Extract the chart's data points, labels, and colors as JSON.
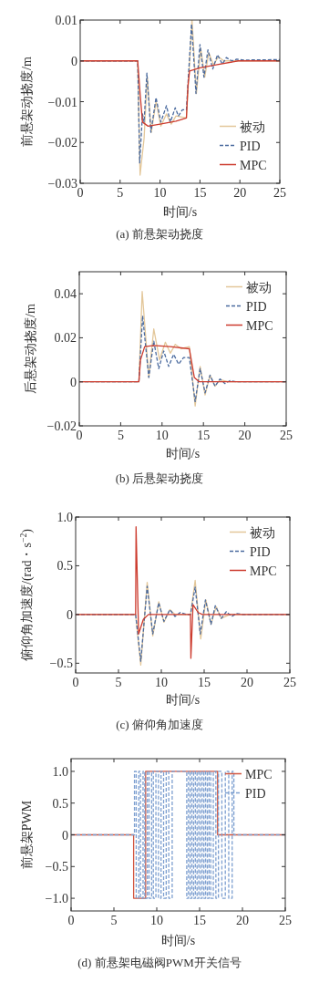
{
  "chart_data": [
    {
      "type": "line",
      "xlabel": "时间/s",
      "ylabel": "前悬架动挠度/m",
      "annotations": [
        "(a) 前悬架动挠度"
      ],
      "legend": "bottom right",
      "xlim": [
        0,
        25
      ],
      "xticks": [
        0,
        5,
        10,
        15,
        20,
        25
      ],
      "ylim": [
        -0.03,
        0.01
      ],
      "yticks": [
        {
          "value": -0.03,
          "label": "−0.03"
        },
        {
          "value": -0.02,
          "label": "−0.02"
        },
        {
          "value": -0.01,
          "label": "−0.01"
        },
        0,
        0.01
      ],
      "series": [
        {
          "name": "被动",
          "color": "#e3c79a",
          "line_style": "solid",
          "x": [
            0,
            7.2,
            7.5,
            8.0,
            8.4,
            8.9,
            9.5,
            10.1,
            10.8,
            11.4,
            12,
            13.3,
            14,
            14.55,
            15.1,
            15.6,
            16.1,
            16.7,
            17.3,
            18,
            25
          ],
          "values": [
            0,
            0,
            -0.028,
            -0.019,
            -0.004,
            -0.0175,
            -0.01,
            -0.016,
            -0.013,
            -0.0155,
            -0.0135,
            -0.014,
            0.01,
            -0.008,
            0.003,
            -0.004,
            0.002,
            -0.001,
            0.001,
            0,
            0
          ]
        },
        {
          "name": "PID",
          "color": "#4a6a9e",
          "line_style": "dashed",
          "x": [
            0,
            7.2,
            7.45,
            7.8,
            8.0,
            8.35,
            8.85,
            9.5,
            10.1,
            10.8,
            11.3,
            11.9,
            12.3,
            12.8,
            13.3,
            13.95,
            14.5,
            15.0,
            15.5,
            16.0,
            16.6,
            17.2,
            17.8,
            18.3,
            19,
            19.6,
            20.5,
            25
          ],
          "values": [
            0,
            0,
            -0.025,
            -0.013,
            -0.015,
            -0.003,
            -0.0175,
            -0.009,
            -0.015,
            -0.011,
            -0.015,
            -0.0115,
            -0.0135,
            -0.012,
            -0.012,
            0.009,
            -0.008,
            0.004,
            -0.004,
            0.0027,
            -0.002,
            0.0015,
            -0.0008,
            0.0008,
            0,
            0.0004,
            0.0002,
            0.0003
          ]
        },
        {
          "name": "MPC",
          "color": "#cc3b2e",
          "line_style": "solid",
          "x": [
            0,
            7.2,
            7.5,
            7.8,
            8.5,
            10,
            12,
            13.3,
            13.5,
            13.7,
            15,
            17,
            19.8,
            25
          ],
          "values": [
            0,
            0,
            -0.008,
            -0.015,
            -0.016,
            -0.0155,
            -0.0148,
            -0.014,
            -0.006,
            -0.0025,
            -0.0017,
            -0.001,
            0,
            0
          ]
        }
      ]
    },
    {
      "type": "line",
      "xlabel": "时间/s",
      "ylabel": "后悬架动挠度/m",
      "annotations": [
        "(b) 后悬架动挠度"
      ],
      "legend": "top right",
      "xlim": [
        0,
        25
      ],
      "xticks": [
        0,
        5,
        10,
        15,
        20,
        25
      ],
      "ylim": [
        -0.02,
        0.05
      ],
      "yticks": [
        {
          "value": -0.02,
          "label": "−0.02"
        },
        0,
        0.02,
        0.04
      ],
      "series": [
        {
          "name": "被动",
          "color": "#e3c79a",
          "line_style": "solid",
          "x": [
            0,
            7.2,
            7.6,
            8.4,
            9.0,
            9.7,
            10.4,
            11,
            11.6,
            12.3,
            13.3,
            14.0,
            14.6,
            15.2,
            15.8,
            16.4,
            17,
            18,
            25
          ],
          "values": [
            0,
            0,
            0.041,
            0.002,
            0.024,
            0.01,
            0.018,
            0.013,
            0.017,
            0.015,
            0.016,
            -0.011,
            0.007,
            -0.006,
            0.003,
            -0.002,
            0.001,
            0,
            0
          ]
        },
        {
          "name": "PID",
          "color": "#4a6a9e",
          "line_style": "dashed",
          "x": [
            0,
            7.2,
            7.65,
            8.4,
            9.0,
            9.6,
            10.2,
            10.8,
            11.4,
            12.0,
            12.6,
            13.3,
            14.0,
            14.6,
            15.2,
            15.8,
            16.4,
            17,
            17.6,
            18.2,
            19,
            25
          ],
          "values": [
            0,
            0,
            0.03,
            0.002,
            0.0185,
            0.006,
            0.014,
            0.007,
            0.0125,
            0.008,
            0.011,
            0.011,
            -0.009,
            0.006,
            -0.005,
            0.003,
            -0.002,
            0.0013,
            -0.0008,
            0.0005,
            0,
            0
          ]
        },
        {
          "name": "MPC",
          "color": "#cc3b2e",
          "line_style": "solid",
          "x": [
            0,
            7.2,
            7.4,
            7.9,
            9,
            11,
            13.3,
            13.9,
            14.5,
            25
          ],
          "values": [
            0,
            0,
            0.01,
            0.016,
            0.0165,
            0.016,
            0.015,
            0.002,
            0,
            0
          ]
        }
      ]
    },
    {
      "type": "line",
      "xlabel": "时间/s",
      "ylabel": "俯仰角加速度/(rad・s$^{−2}$)",
      "annotations": [
        "(c) 俯仰角加速度"
      ],
      "legend": "top right",
      "xlim": [
        0,
        25
      ],
      "xticks": [
        0,
        5,
        10,
        15,
        20,
        25
      ],
      "ylim": [
        -0.6,
        1.0
      ],
      "yticks": [
        {
          "value": -0.5,
          "label": "−0.5"
        },
        0,
        0.5,
        {
          "value": 1,
          "label": "1.0"
        }
      ],
      "series": [
        {
          "name": "被动",
          "color": "#e3c79a",
          "line_style": "solid",
          "x": [
            0,
            7.0,
            7.6,
            8.35,
            9.0,
            9.7,
            10.3,
            11,
            11.6,
            13.4,
            13.95,
            14.6,
            15.2,
            15.8,
            16.4,
            17,
            18,
            25
          ],
          "values": [
            0,
            0,
            -0.52,
            0.33,
            -0.22,
            0.13,
            -0.08,
            0.05,
            0,
            0,
            0.35,
            -0.25,
            0.15,
            -0.1,
            0.08,
            -0.04,
            0,
            0
          ]
        },
        {
          "name": "PID",
          "color": "#4a6a9e",
          "line_style": "dashed",
          "x": [
            0,
            7.0,
            7.6,
            8.35,
            9.0,
            9.7,
            10.3,
            11,
            11.6,
            12.2,
            13,
            13.4,
            13.95,
            14.55,
            15.15,
            15.8,
            16.3,
            17,
            17.6,
            18.2,
            18.8,
            19.5,
            25
          ],
          "values": [
            0,
            0,
            -0.48,
            0.29,
            -0.2,
            0.12,
            -0.07,
            0.05,
            -0.02,
            0.02,
            0,
            0,
            0.28,
            -0.2,
            0.15,
            -0.1,
            0.09,
            -0.04,
            0.03,
            -0.02,
            0.01,
            0,
            0
          ]
        },
        {
          "name": "MPC",
          "color": "#cc3b2e",
          "line_style": "solid",
          "x": [
            0,
            7.0,
            7.05,
            7.35,
            7.9,
            8.5,
            13.4,
            13.45,
            13.7,
            14.3,
            14.8,
            25
          ],
          "values": [
            0,
            0,
            0.9,
            -0.2,
            -0.05,
            0,
            0,
            -0.45,
            0.1,
            0.02,
            0,
            0
          ]
        }
      ]
    },
    {
      "type": "step",
      "xlabel": "时间/s",
      "ylabel": "前悬架PWM",
      "annotations": [
        "(d) 前悬架电磁阀PWM开关信号"
      ],
      "legend": "top right",
      "xlim": [
        0,
        25
      ],
      "xticks": [
        0,
        5,
        10,
        15,
        20,
        25
      ],
      "ylim": [
        -1.2,
        1.2
      ],
      "yticks": [
        {
          "value": -1,
          "label": "−1.0"
        },
        {
          "value": -0.5,
          "label": "−0.5"
        },
        0,
        0.5,
        {
          "value": 1,
          "label": "1.0"
        }
      ],
      "series": [
        {
          "name": "MPC",
          "color": "#d2553f",
          "line_style": "solid",
          "x": [
            0,
            7.3,
            8.7,
            17.1,
            25
          ],
          "values": [
            0,
            -1,
            1,
            0,
            0
          ]
        },
        {
          "name": "PID",
          "color": "#7d9fd0",
          "line_style": "dashed",
          "x": [
            0,
            7.4,
            7.6,
            7.9,
            8.1,
            8.4,
            8.6,
            8.9,
            9.1,
            9.4,
            9.6,
            9.9,
            10.2,
            10.5,
            10.8,
            11.1,
            11.4,
            11.8,
            12.3,
            13.5,
            13.7,
            13.9,
            14.1,
            14.3,
            14.5,
            14.7,
            14.9,
            15.1,
            15.3,
            15.5,
            15.7,
            15.9,
            16.1,
            16.3,
            16.6,
            16.9,
            17.2,
            17.6,
            18.0,
            18.4,
            18.8,
            19.0,
            25
          ],
          "values": [
            0,
            1,
            -1,
            1,
            -1,
            1,
            -1,
            1,
            -1,
            1,
            -1,
            1,
            -1,
            1,
            -1,
            1,
            -1,
            1,
            1,
            -1,
            1,
            -1,
            1,
            -1,
            1,
            -1,
            1,
            -1,
            1,
            -1,
            1,
            -1,
            1,
            -1,
            1,
            -1,
            1,
            -1,
            1,
            -1,
            1,
            0,
            0
          ]
        }
      ]
    }
  ]
}
